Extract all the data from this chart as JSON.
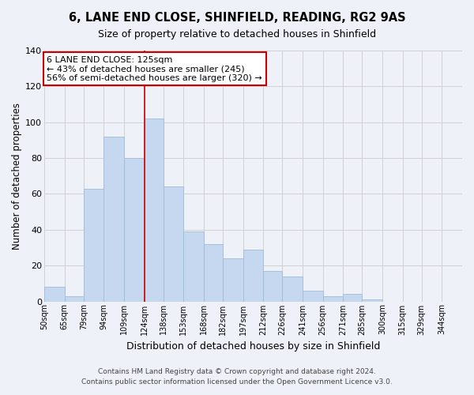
{
  "title": "6, LANE END CLOSE, SHINFIELD, READING, RG2 9AS",
  "subtitle": "Size of property relative to detached houses in Shinfield",
  "xlabel": "Distribution of detached houses by size in Shinfield",
  "ylabel": "Number of detached properties",
  "footer_line1": "Contains HM Land Registry data © Crown copyright and database right 2024.",
  "footer_line2": "Contains public sector information licensed under the Open Government Licence v3.0.",
  "bar_edges": [
    50,
    65,
    79,
    94,
    109,
    124,
    138,
    153,
    168,
    182,
    197,
    212,
    226,
    241,
    256,
    271,
    285,
    300,
    315,
    329,
    344
  ],
  "bar_heights": [
    8,
    3,
    63,
    92,
    80,
    102,
    64,
    39,
    32,
    24,
    29,
    17,
    14,
    6,
    3,
    4,
    1,
    0,
    0,
    0,
    0
  ],
  "bar_color": "#c5d8f0",
  "bar_edgecolor": "#a0bcd8",
  "vline_x": 124,
  "vline_color": "#cc0000",
  "ylim": [
    0,
    140
  ],
  "yticks": [
    0,
    20,
    40,
    60,
    80,
    100,
    120,
    140
  ],
  "annotation_line1": "6 LANE END CLOSE: 125sqm",
  "annotation_line2": "← 43% of detached houses are smaller (245)",
  "annotation_line3": "56% of semi-detached houses are larger (320) →",
  "annotation_box_color": "#ffffff",
  "annotation_border_color": "#cc0000",
  "grid_color": "#d0d0d0",
  "background_color": "#eef2f8",
  "tick_labels": [
    "50sqm",
    "65sqm",
    "79sqm",
    "94sqm",
    "109sqm",
    "124sqm",
    "138sqm",
    "153sqm",
    "168sqm",
    "182sqm",
    "197sqm",
    "212sqm",
    "226sqm",
    "241sqm",
    "256sqm",
    "271sqm",
    "285sqm",
    "300sqm",
    "315sqm",
    "329sqm",
    "344sqm"
  ]
}
